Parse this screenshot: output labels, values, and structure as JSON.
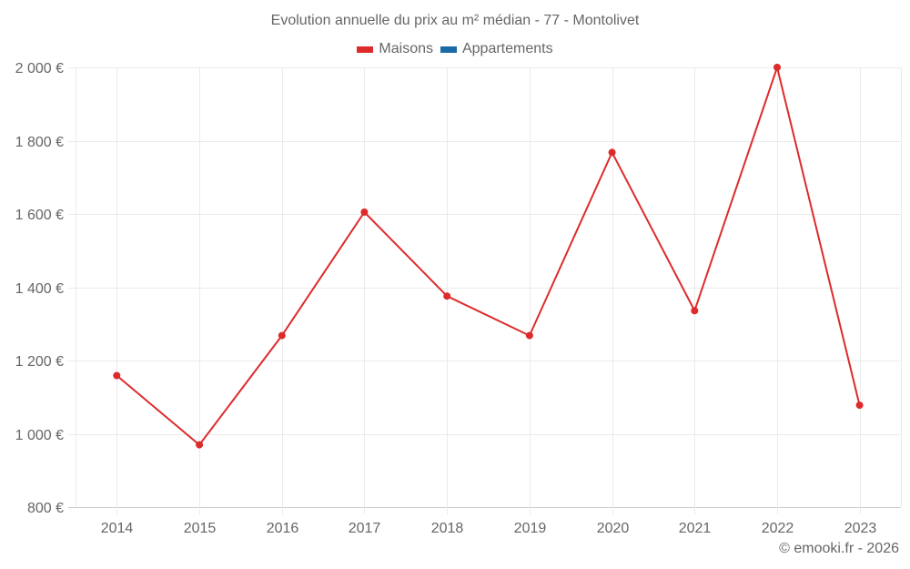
{
  "chart_data": {
    "type": "line",
    "title": "Evolution annuelle du prix au m² médian - 77 - Montolivet",
    "xlabel": "",
    "ylabel": "",
    "categories": [
      "2014",
      "2015",
      "2016",
      "2017",
      "2018",
      "2019",
      "2020",
      "2021",
      "2022",
      "2023"
    ],
    "series": [
      {
        "name": "Maisons",
        "color": "#dd2b2b",
        "values": [
          1159,
          970,
          1268,
          1605,
          1376,
          1268,
          1768,
          1336,
          2000,
          1078
        ]
      },
      {
        "name": "Appartements",
        "color": "#1a6aa8",
        "values": []
      }
    ],
    "ylim": [
      800,
      2000
    ],
    "yticks": [
      800,
      1000,
      1200,
      1400,
      1600,
      1800,
      2000
    ],
    "ytick_labels": [
      "800 €",
      "1 000 €",
      "1 200 €",
      "1 400 €",
      "1 600 €",
      "1 800 €",
      "2 000 €"
    ],
    "grid": true,
    "legend_position": "top"
  },
  "header": {
    "title": "Evolution annuelle du prix au m² médian - 77 - Montolivet"
  },
  "legend": {
    "items": [
      {
        "label": "Maisons",
        "color": "#dd2b2b"
      },
      {
        "label": "Appartements",
        "color": "#1a6aa8"
      }
    ]
  },
  "footer": {
    "credit": "© emooki.fr - 2026"
  }
}
